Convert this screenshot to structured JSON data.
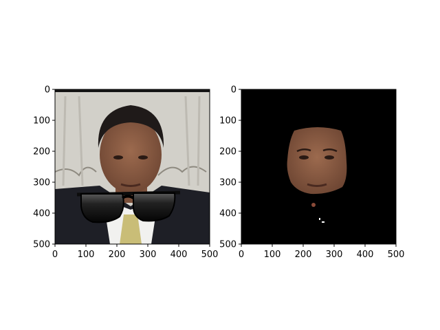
{
  "chart_data": [
    {
      "type": "image",
      "title": "",
      "xlabel": "",
      "ylabel": "",
      "xlim": [
        0,
        500
      ],
      "ylim": [
        500,
        0
      ],
      "x_ticks": [
        "0",
        "100",
        "200",
        "300",
        "400",
        "500"
      ],
      "y_ticks": [
        "0",
        "100",
        "200",
        "300",
        "400",
        "500"
      ],
      "grid": false,
      "content": {
        "background": "#d2d0c9",
        "top_strip": "#151515",
        "suit": "#1e1f26",
        "shirt": "#f1f1ef",
        "tie": "#c9bd77",
        "skin": "#8a5c43",
        "hair": "#1f1a19",
        "overlay": "sunglasses-icon",
        "overlay_color": "#101010"
      }
    },
    {
      "type": "image",
      "title": "",
      "xlabel": "",
      "ylabel": "",
      "xlim": [
        0,
        500
      ],
      "ylim": [
        500,
        0
      ],
      "x_ticks": [
        "0",
        "100",
        "200",
        "300",
        "400",
        "500"
      ],
      "y_ticks": [
        "0",
        "100",
        "200",
        "300",
        "400",
        "500"
      ],
      "grid": false,
      "content": {
        "background": "#000000",
        "skin": "#8a5c43",
        "description_shape": "face-mask"
      }
    }
  ]
}
